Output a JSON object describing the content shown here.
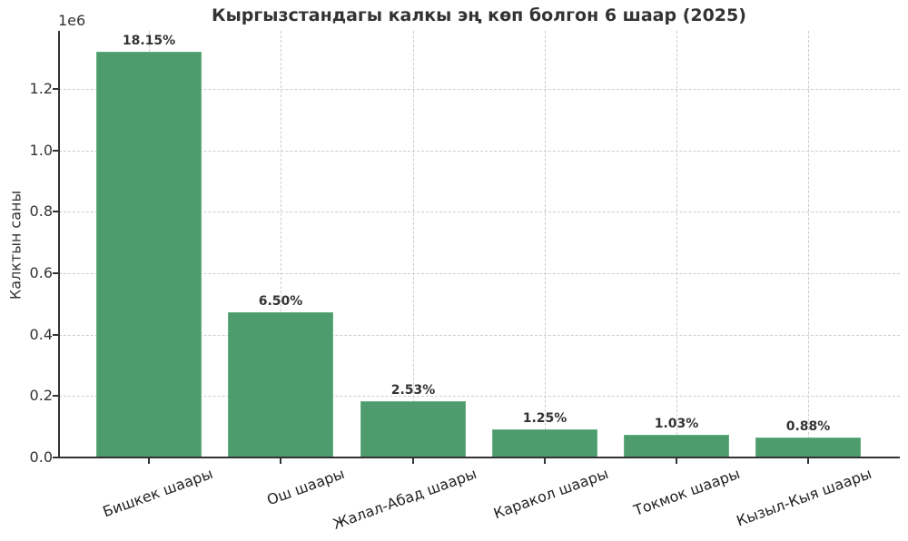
{
  "chart_data": {
    "type": "bar",
    "title": "Кыргызстандагы калкы эң көп болгон 6 шаар (2025)",
    "xlabel": "",
    "ylabel": "Калктын саны",
    "y_offset_label": "1e6",
    "ylim": [
      0,
      1386000
    ],
    "yticks": [
      "0.0",
      "0.2",
      "0.4",
      "0.6",
      "0.8",
      "1.0",
      "1.2"
    ],
    "grid": true,
    "categories": [
      "Бишкек шаары",
      "Ош шаары",
      "Жалал-Абад шаары",
      "Каракол шаары",
      "Токмок шаары",
      "Кызыл-Кыя шаары"
    ],
    "values": [
      1320000,
      473000,
      184000,
      91000,
      75000,
      64000
    ],
    "bar_labels": [
      "18.15%",
      "6.50%",
      "2.53%",
      "1.25%",
      "1.03%",
      "0.88%"
    ],
    "bar_color": "#4e9b6d"
  }
}
